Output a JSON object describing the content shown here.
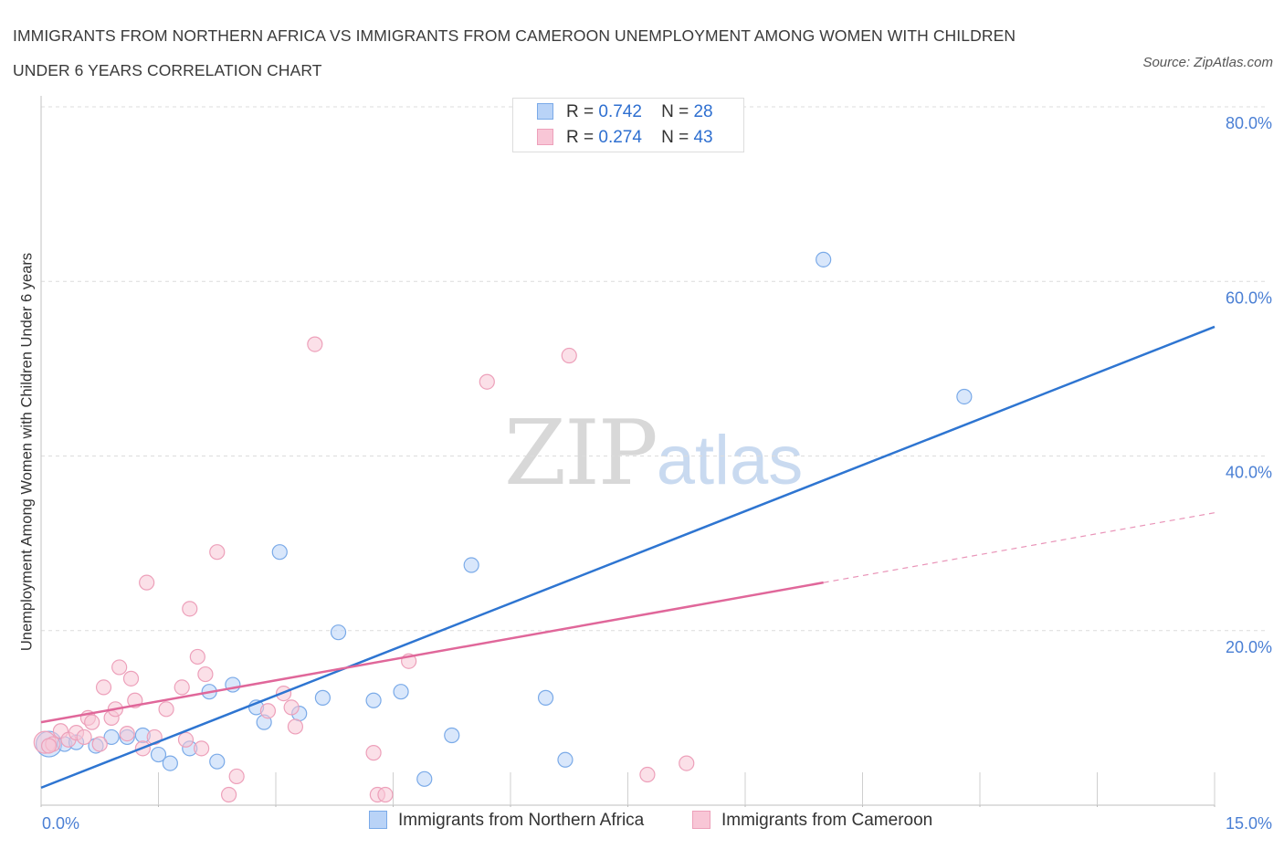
{
  "header": {
    "title_line1": "IMMIGRANTS FROM NORTHERN AFRICA VS IMMIGRANTS FROM CAMEROON UNEMPLOYMENT AMONG WOMEN WITH CHILDREN",
    "title_line2": "UNDER 6 YEARS CORRELATION CHART",
    "source": "Source: ZipAtlas.com"
  },
  "watermark": {
    "zip": "ZIP",
    "atlas": "atlas"
  },
  "legend": {
    "rows": [
      {
        "r_label": "R =",
        "r_value": "0.742",
        "n_label": "N =",
        "n_value": "28"
      },
      {
        "r_label": "R =",
        "r_value": "0.274",
        "n_label": "N =",
        "n_value": "43"
      }
    ]
  },
  "colors": {
    "blue": "#2e75d1",
    "blue_fill": "#b9d3f7",
    "blue_stroke": "#7aaae8",
    "pink": "#e0679a",
    "pink_fill": "#f8c6d6",
    "pink_stroke": "#eda0ba",
    "grid": "#dcdcdc",
    "tick_label": "#4a7fd4"
  },
  "chart_data": {
    "type": "scatter",
    "title": "IMMIGRANTS FROM NORTHERN AFRICA VS IMMIGRANTS FROM CAMEROON UNEMPLOYMENT AMONG WOMEN WITH CHILDREN UNDER 6 YEARS CORRELATION CHART",
    "xlabel": "",
    "ylabel": "Unemployment Among Women with Children Under 6 years",
    "xlim": [
      0,
      15
    ],
    "ylim": [
      0,
      80
    ],
    "x_tick_labels": [
      {
        "value": 0,
        "label": "0.0%"
      },
      {
        "value": 15,
        "label": "15.0%"
      }
    ],
    "y_tick_labels": [
      {
        "value": 20,
        "label": "20.0%"
      },
      {
        "value": 40,
        "label": "40.0%"
      },
      {
        "value": 60,
        "label": "60.0%"
      },
      {
        "value": 80,
        "label": "80.0%"
      }
    ],
    "grid": true,
    "legend_position": "top-center",
    "series": [
      {
        "name": "Immigrants from Northern Africa",
        "color": "#2e75d1",
        "points": [
          [
            0.1,
            7.0
          ],
          [
            0.3,
            7.0
          ],
          [
            0.45,
            7.2
          ],
          [
            0.7,
            6.8
          ],
          [
            0.9,
            7.8
          ],
          [
            1.1,
            7.8
          ],
          [
            1.3,
            8.0
          ],
          [
            1.5,
            5.8
          ],
          [
            1.65,
            4.8
          ],
          [
            1.9,
            6.5
          ],
          [
            2.15,
            13.0
          ],
          [
            2.25,
            5.0
          ],
          [
            2.45,
            13.8
          ],
          [
            2.75,
            11.2
          ],
          [
            2.85,
            9.5
          ],
          [
            3.05,
            29.0
          ],
          [
            3.3,
            10.5
          ],
          [
            3.6,
            12.3
          ],
          [
            3.8,
            19.8
          ],
          [
            4.25,
            12.0
          ],
          [
            4.6,
            13.0
          ],
          [
            4.9,
            3.0
          ],
          [
            5.25,
            8.0
          ],
          [
            5.5,
            27.5
          ],
          [
            6.45,
            12.3
          ],
          [
            6.7,
            5.2
          ],
          [
            10.0,
            62.5
          ],
          [
            11.8,
            46.8
          ]
        ],
        "trendline": {
          "x": [
            0,
            15
          ],
          "y": [
            2.0,
            54.8
          ],
          "style": "solid"
        }
      },
      {
        "name": "Immigrants from Cameroon",
        "color": "#e0679a",
        "points": [
          [
            0.05,
            7.2
          ],
          [
            0.15,
            7.0
          ],
          [
            0.25,
            8.5
          ],
          [
            0.35,
            7.5
          ],
          [
            0.45,
            8.3
          ],
          [
            0.55,
            7.8
          ],
          [
            0.6,
            10.0
          ],
          [
            0.65,
            9.5
          ],
          [
            0.75,
            7.0
          ],
          [
            0.8,
            13.5
          ],
          [
            0.9,
            10.0
          ],
          [
            0.95,
            11.0
          ],
          [
            1.0,
            15.8
          ],
          [
            1.1,
            8.2
          ],
          [
            1.15,
            14.5
          ],
          [
            1.2,
            12.0
          ],
          [
            1.3,
            6.5
          ],
          [
            1.35,
            25.5
          ],
          [
            1.45,
            7.8
          ],
          [
            1.6,
            11.0
          ],
          [
            1.8,
            13.5
          ],
          [
            1.85,
            7.5
          ],
          [
            1.9,
            22.5
          ],
          [
            2.0,
            17.0
          ],
          [
            2.05,
            6.5
          ],
          [
            2.1,
            15.0
          ],
          [
            2.25,
            29.0
          ],
          [
            2.4,
            1.2
          ],
          [
            2.5,
            3.3
          ],
          [
            2.9,
            10.8
          ],
          [
            3.1,
            12.8
          ],
          [
            3.2,
            11.2
          ],
          [
            3.25,
            9.0
          ],
          [
            3.5,
            52.8
          ],
          [
            4.25,
            6.0
          ],
          [
            4.3,
            1.2
          ],
          [
            4.4,
            1.2
          ],
          [
            4.7,
            16.5
          ],
          [
            5.7,
            48.5
          ],
          [
            6.75,
            51.5
          ],
          [
            7.75,
            3.5
          ],
          [
            8.25,
            4.8
          ],
          [
            0.1,
            6.8
          ]
        ],
        "trendline": {
          "x": [
            0,
            10.0
          ],
          "y": [
            9.5,
            25.5
          ],
          "style": "solid",
          "extended_to": [
            15,
            33.5
          ],
          "extended_style": "dashed"
        }
      }
    ]
  }
}
